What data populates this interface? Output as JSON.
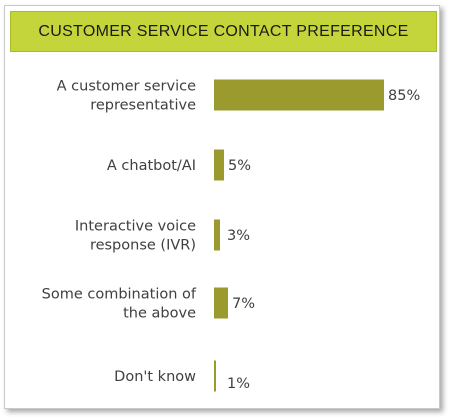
{
  "chart_data": {
    "type": "bar",
    "orientation": "horizontal",
    "title": "CUSTOMER SERVICE CONTACT PREFERENCE",
    "categories": [
      [
        "A customer service",
        "representative"
      ],
      [
        "A chatbot/AI"
      ],
      [
        "Interactive voice",
        "response (IVR)"
      ],
      [
        "Some combination of",
        "the above"
      ],
      [
        "Don't know"
      ]
    ],
    "values": [
      85,
      5,
      3,
      7,
      1
    ],
    "value_labels": [
      "85%",
      "5%",
      "3%",
      "7%",
      "1%"
    ],
    "xlim": [
      0,
      100
    ],
    "grid": false,
    "legend": "none",
    "colors": {
      "bar": "#9a9a2f",
      "title_background": "#c3d53a",
      "title_border": "#a9bb2a"
    }
  }
}
